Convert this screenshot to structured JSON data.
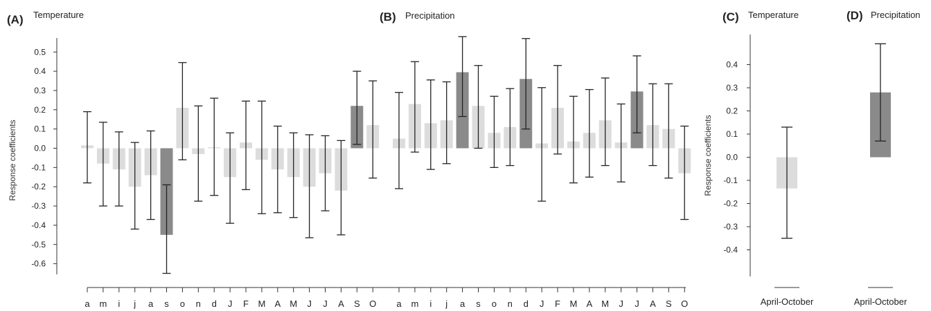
{
  "chart_data": [
    {
      "panel": "(A)",
      "title": "Temperature",
      "type": "bar",
      "ylabel": "Response coefficients",
      "ylim": [
        -0.65,
        0.55
      ],
      "yticks": [
        "0.5",
        "0.4",
        "0.3",
        "0.2",
        "0.1",
        "0.0",
        "-0.1",
        "-0.2",
        "-0.3",
        "-0.4",
        "-0.5",
        "-0.6"
      ],
      "categories": [
        "a",
        "m",
        "i",
        "j",
        "a",
        "s",
        "o",
        "n",
        "d",
        "J",
        "F",
        "M",
        "A",
        "M",
        "J",
        "J",
        "A",
        "S",
        "O"
      ],
      "values": [
        0.015,
        -0.08,
        -0.11,
        -0.2,
        -0.14,
        -0.45,
        0.21,
        -0.03,
        0.005,
        -0.15,
        0.03,
        -0.06,
        -0.11,
        -0.15,
        -0.2,
        -0.13,
        -0.22,
        0.22,
        0.12
      ],
      "upper": [
        0.19,
        0.135,
        0.085,
        0.03,
        0.09,
        -0.19,
        0.445,
        0.22,
        0.26,
        0.08,
        0.245,
        0.245,
        0.115,
        0.08,
        0.07,
        0.065,
        0.04,
        0.4,
        0.35
      ],
      "lower": [
        -0.18,
        -0.3,
        -0.3,
        -0.42,
        -0.37,
        -0.65,
        -0.06,
        -0.275,
        -0.245,
        -0.39,
        -0.215,
        -0.34,
        -0.335,
        -0.36,
        -0.465,
        -0.325,
        -0.45,
        0.02,
        -0.155
      ],
      "significant": [
        false,
        false,
        false,
        false,
        false,
        true,
        false,
        false,
        false,
        false,
        false,
        false,
        false,
        false,
        false,
        false,
        false,
        true,
        false
      ]
    },
    {
      "panel": "(B)",
      "title": "Precipitation",
      "type": "bar",
      "ylabel": "",
      "ylim": [
        -0.65,
        0.55
      ],
      "categories": [
        "a",
        "m",
        "i",
        "j",
        "a",
        "s",
        "o",
        "n",
        "d",
        "J",
        "F",
        "M",
        "A",
        "M",
        "J",
        "J",
        "A",
        "S",
        "O"
      ],
      "values": [
        0.05,
        0.23,
        0.13,
        0.145,
        0.395,
        0.22,
        0.08,
        0.11,
        0.36,
        0.025,
        0.21,
        0.035,
        0.08,
        0.145,
        0.03,
        0.295,
        0.12,
        0.1,
        -0.13
      ],
      "upper": [
        0.29,
        0.45,
        0.355,
        0.345,
        0.58,
        0.43,
        0.27,
        0.31,
        0.57,
        0.315,
        0.43,
        0.27,
        0.305,
        0.365,
        0.23,
        0.48,
        0.335,
        0.335,
        0.115
      ],
      "lower": [
        -0.21,
        -0.02,
        -0.11,
        -0.08,
        0.165,
        0.0,
        -0.1,
        -0.09,
        0.1,
        -0.275,
        -0.03,
        -0.18,
        -0.15,
        -0.09,
        -0.175,
        0.08,
        -0.09,
        -0.155,
        -0.37
      ],
      "significant": [
        false,
        false,
        false,
        false,
        true,
        false,
        false,
        false,
        true,
        false,
        false,
        false,
        false,
        false,
        false,
        true,
        false,
        false,
        false
      ]
    },
    {
      "panel": "(C)",
      "title": "Temperature",
      "type": "bar",
      "ylabel": "Response coefficients",
      "ylim": [
        -0.5,
        0.5
      ],
      "yticks": [
        "0.4",
        "0.3",
        "0.2",
        "0.1",
        "0.0",
        "-0.1",
        "-0.2",
        "-0.3",
        "-0.4"
      ],
      "categories": [
        "April-October"
      ],
      "values": [
        -0.135
      ],
      "upper": [
        0.13
      ],
      "lower": [
        -0.35
      ],
      "significant": [
        false
      ]
    },
    {
      "panel": "(D)",
      "title": "Precipitation",
      "type": "bar",
      "ylabel": "",
      "ylim": [
        -0.5,
        0.5
      ],
      "categories": [
        "April-October"
      ],
      "values": [
        0.28
      ],
      "upper": [
        0.49
      ],
      "lower": [
        0.07
      ],
      "significant": [
        true
      ]
    }
  ],
  "colors": {
    "significant": "#8a8a8a",
    "non_significant": "#dcdcdc",
    "error_bar": "#222222"
  }
}
